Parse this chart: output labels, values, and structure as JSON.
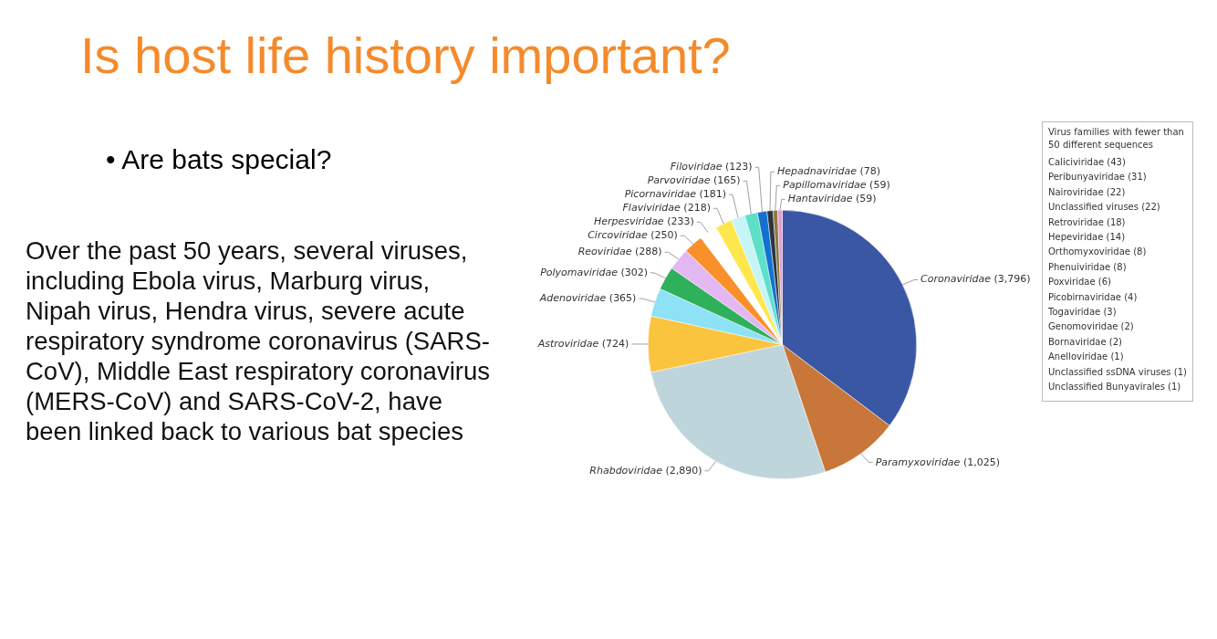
{
  "chart_data": {
    "type": "pie",
    "title": "Is host life history important?",
    "subtitle": "• Are bats special?",
    "categories": [
      "Coronaviridae",
      "Paramyxoviridae",
      "Rhabdoviridae",
      "Astroviridae",
      "Adenoviridae",
      "Polyomaviridae",
      "Reoviridae",
      "Circoviridae",
      "Herpesviridae",
      "Flaviviridae",
      "Picornaviridae",
      "Parvoviridae",
      "Filoviridae",
      "Hepadnaviridae",
      "Papillomaviridae",
      "Hantaviridae"
    ],
    "values": [
      3796,
      1025,
      2890,
      724,
      365,
      302,
      288,
      250,
      233,
      218,
      181,
      165,
      123,
      78,
      59,
      59
    ],
    "value_labels": [
      "(3,796)",
      "(1,025)",
      "(2,890)",
      "(724)",
      "(365)",
      "(302)",
      "(288)",
      "(250)",
      "(233)",
      "(218)",
      "(181)",
      "(165)",
      "(123)",
      "(78)",
      "(59)",
      "(59)"
    ],
    "colors": [
      "#3a57a4",
      "#c8763a",
      "#bfd5dc",
      "#fbc43e",
      "#8ee2f6",
      "#2fb05a",
      "#e3b7f2",
      "#f9902a",
      "#ffffff",
      "#fde74c",
      "#c5f5f6",
      "#5ee0c8",
      "#1372d0",
      "#2d3340",
      "#8a7a3a",
      "#e89ad8"
    ],
    "annotations": [
      "Over the past 50 years, several viruses, including Ebola virus, Marburg virus, Nipah virus, Hendra virus, severe acute respiratory syndrome coronavirus (SARS-CoV), Middle East respiratory coronavirus (MERS-CoV) and SARS-CoV-2, have been linked back to various bat species",
      "Virus families with fewer than 50 different sequences",
      "Caliciviridae (43)",
      "Peribunyaviridae (31)",
      "Nairoviridae (22)",
      "Unclassified viruses (22)",
      "Retroviridae (18)",
      "Hepeviridae (14)",
      "Orthomyxoviridae (8)",
      "Phenuiviridae (8)",
      "Poxviridae (6)",
      "Picobirnaviridae (4)",
      "Togaviridae (3)",
      "Genomoviridae (2)",
      "Bornaviridae (2)",
      "Anelloviridae (1)",
      "Unclassified ssDNA viruses (1)",
      "Unclassified Bunyavirales (1)"
    ]
  }
}
